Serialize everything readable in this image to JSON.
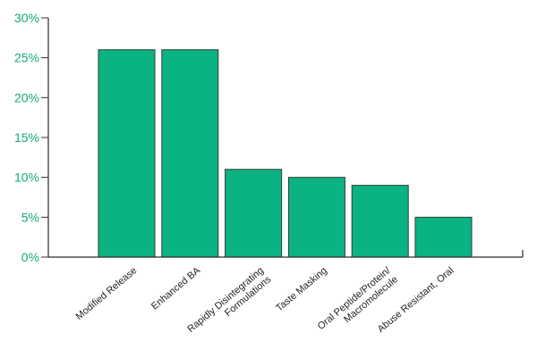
{
  "chart_data": {
    "type": "bar",
    "categories": [
      [
        "Modified Release"
      ],
      [
        "Enhanced BA"
      ],
      [
        "Rapidly Disintegrating",
        "Formulations"
      ],
      [
        "Taste Masking"
      ],
      [
        "Oral Peptide/Protein/",
        "Macromolecule"
      ],
      [
        "Abuse Resistant, Oral"
      ]
    ],
    "values": [
      26,
      26,
      11,
      10,
      9,
      5
    ],
    "ylim": [
      0,
      30
    ],
    "yticks": [
      0,
      5,
      10,
      15,
      20,
      25,
      30
    ],
    "ytick_labels": [
      "0%",
      "5%",
      "10%",
      "15%",
      "20%",
      "25%",
      "30%"
    ],
    "grid": false,
    "colors": {
      "bar": "#0bb382",
      "bar_edge": "#2f3b35",
      "axis": "#2b2b2b",
      "tick_text": "#14a97a",
      "category_text": "#222222"
    }
  }
}
